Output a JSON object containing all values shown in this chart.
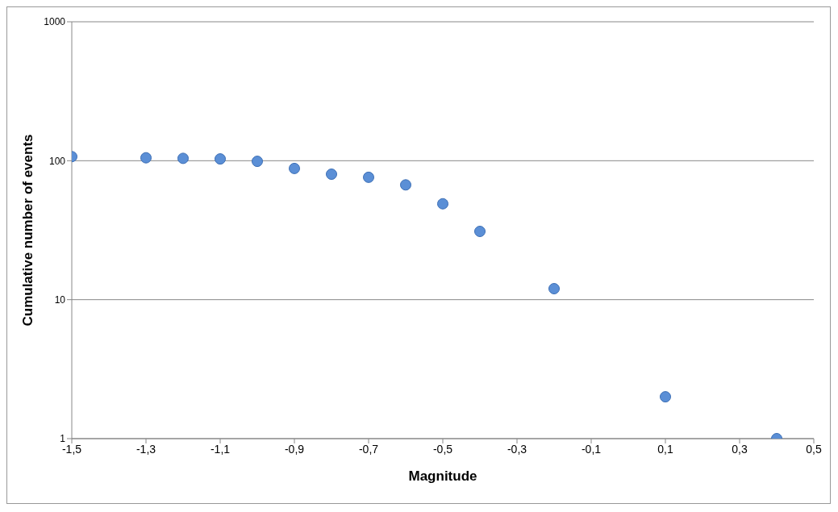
{
  "chart_data": {
    "type": "scatter",
    "xlabel": "Magnitude",
    "ylabel": "Cumulative number of events",
    "x": [
      -1.5,
      -1.3,
      -1.2,
      -1.1,
      -1.0,
      -0.9,
      -0.8,
      -0.7,
      -0.6,
      -0.5,
      -0.4,
      -0.2,
      0.1,
      0.4
    ],
    "values": [
      107,
      105,
      104,
      103,
      99,
      88,
      80,
      76,
      67,
      49,
      31,
      12,
      2,
      1
    ],
    "color": "#5b8fd6",
    "marker": "circle",
    "log": "y",
    "grid": "y",
    "xlim": [
      -1.5,
      0.5
    ],
    "xticks": [
      {
        "value": -1.5,
        "label": "-1,5"
      },
      {
        "value": -1.3,
        "label": "-1,3"
      },
      {
        "value": -1.1,
        "label": "-1,1"
      },
      {
        "value": -0.9,
        "label": "-0,9"
      },
      {
        "value": -0.7,
        "label": "-0,7"
      },
      {
        "value": -0.5,
        "label": "-0,5"
      },
      {
        "value": -0.3,
        "label": "-0,3"
      },
      {
        "value": -0.1,
        "label": "-0,1"
      },
      {
        "value": 0.1,
        "label": "0,1"
      },
      {
        "value": 0.3,
        "label": "0,3"
      },
      {
        "value": 0.5,
        "label": "0,5"
      }
    ],
    "ylim": [
      1,
      1000
    ],
    "yticks": [
      1,
      10,
      100,
      1000
    ]
  }
}
